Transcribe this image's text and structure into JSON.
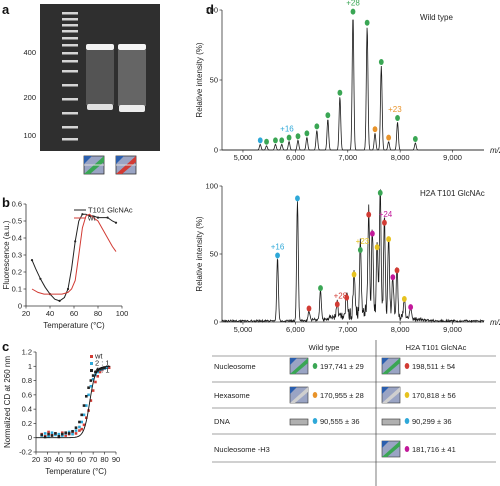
{
  "panel_labels": {
    "a": "a",
    "b": "b",
    "c": "c",
    "d": "d"
  },
  "colors": {
    "green": "#3aa654",
    "orange": "#e8932a",
    "blue": "#2ea8d8",
    "red": "#d23b34",
    "yellow": "#e6c21f",
    "magenta": "#c2189a",
    "black": "#222222"
  },
  "icons": {
    "nucleosome": "nucleosome-icon",
    "hexasome": "hexasome-icon",
    "dna": "dna-bar-icon"
  },
  "gel": {
    "ladder_labels": [
      "400",
      "200",
      "100"
    ]
  },
  "chart_data": [
    {
      "panel": "b",
      "type": "line",
      "xlabel": "Temperature (°C)",
      "ylabel": "Fluorescence (a.u.)",
      "xlim": [
        20,
        100
      ],
      "ylim": [
        0,
        0.6
      ],
      "xticks": [
        20,
        40,
        60,
        80,
        100
      ],
      "yticks": [
        0,
        0.1,
        0.2,
        0.3,
        0.4,
        0.5,
        0.6
      ],
      "legend": [
        "T101 GlcNAc",
        "wt"
      ],
      "series": [
        {
          "name": "T101 GlcNAc",
          "x": [
            25,
            28,
            32,
            36,
            40,
            44,
            48,
            52,
            55,
            58,
            61,
            64,
            67,
            70,
            73,
            76,
            80,
            84,
            88,
            92,
            95
          ],
          "y": [
            0.27,
            0.22,
            0.16,
            0.11,
            0.07,
            0.04,
            0.03,
            0.05,
            0.1,
            0.22,
            0.38,
            0.5,
            0.54,
            0.54,
            0.53,
            0.53,
            0.52,
            0.52,
            0.52,
            0.5,
            0.49
          ]
        },
        {
          "name": "wt",
          "x": [
            25,
            30,
            35,
            40,
            45,
            50,
            55,
            58,
            61,
            64,
            67,
            70,
            73,
            76,
            80,
            84,
            88,
            92,
            95
          ],
          "y": [
            0.1,
            0.08,
            0.07,
            0.07,
            0.07,
            0.07,
            0.08,
            0.1,
            0.15,
            0.3,
            0.46,
            0.53,
            0.54,
            0.52,
            0.5,
            0.45,
            0.4,
            0.35,
            0.32
          ]
        }
      ]
    },
    {
      "panel": "c",
      "type": "scatter",
      "xlabel": "Temperature (°C)",
      "ylabel": "Normalized CD at 260 nm",
      "xlim": [
        20,
        90
      ],
      "ylim": [
        -0.2,
        1.2
      ],
      "xticks": [
        20,
        30,
        40,
        50,
        60,
        70,
        80,
        90
      ],
      "yticks": [
        -0.2,
        0,
        0.2,
        0.4,
        0.6,
        0.8,
        1.0,
        1.2
      ],
      "legend": [
        "wt",
        "2 : 1",
        "4 : 1"
      ],
      "series": [
        {
          "name": "wt",
          "color_key": "red",
          "x": [
            25,
            28,
            31,
            34,
            37,
            40,
            43,
            46,
            49,
            52,
            55,
            58,
            60,
            62,
            64,
            66,
            68,
            70,
            72,
            74,
            76,
            78,
            80,
            82,
            84
          ],
          "y": [
            0.05,
            0.02,
            0.08,
            0.04,
            0.06,
            0.01,
            0.07,
            0.03,
            0.05,
            0.08,
            0.06,
            0.1,
            0.12,
            0.18,
            0.28,
            0.38,
            0.52,
            0.66,
            0.78,
            0.86,
            0.92,
            0.95,
            0.97,
            0.98,
            0.98
          ]
        },
        {
          "name": "2 : 1",
          "color_key": "blue",
          "x": [
            25,
            28,
            31,
            34,
            37,
            40,
            43,
            46,
            49,
            52,
            55,
            58,
            60,
            62,
            64,
            66,
            68,
            70,
            72,
            74,
            76,
            78,
            80,
            82
          ],
          "y": [
            0.03,
            0.06,
            0.02,
            0.07,
            0.04,
            0.05,
            0.03,
            0.06,
            0.08,
            0.05,
            0.1,
            0.15,
            0.22,
            0.32,
            0.45,
            0.6,
            0.72,
            0.82,
            0.88,
            0.92,
            0.95,
            0.96,
            0.97,
            0.98
          ]
        },
        {
          "name": "4 : 1",
          "color_key": "black",
          "x": [
            25,
            28,
            31,
            34,
            37,
            40,
            43,
            46,
            49,
            52,
            55,
            58,
            60,
            62,
            64,
            66,
            68,
            70,
            72,
            74,
            76,
            78,
            80
          ],
          "y": [
            0.04,
            0.01,
            0.05,
            0.03,
            0.06,
            0.02,
            0.05,
            0.07,
            0.06,
            0.09,
            0.14,
            0.22,
            0.32,
            0.45,
            0.58,
            0.7,
            0.8,
            0.87,
            0.92,
            0.95,
            0.96,
            0.97,
            0.98
          ]
        }
      ]
    },
    {
      "panel": "d-top",
      "type": "line",
      "title": "Wild type",
      "xlabel": "m/z",
      "ylabel": "Relative intensity (%)",
      "xlim": [
        4600,
        9600
      ],
      "ylim": [
        0,
        100
      ],
      "yticks": [
        0,
        50,
        100
      ],
      "xticks": [
        5000,
        6000,
        7000,
        8000,
        9000
      ],
      "xtick_labels": [
        "5,000",
        "6,000",
        "7,000",
        "8,000",
        "9,000"
      ],
      "peaks": [
        {
          "x": 5330,
          "y": 4,
          "color_key": "blue"
        },
        {
          "x": 5450,
          "y": 3,
          "color_key": "green"
        },
        {
          "x": 5620,
          "y": 4,
          "color_key": "green"
        },
        {
          "x": 5740,
          "y": 4,
          "color_key": "green"
        },
        {
          "x": 5880,
          "y": 6,
          "color_key": "green"
        },
        {
          "x": 6050,
          "y": 7,
          "color_key": "green"
        },
        {
          "x": 6220,
          "y": 9,
          "color_key": "green"
        },
        {
          "x": 6410,
          "y": 14,
          "color_key": "green"
        },
        {
          "x": 6620,
          "y": 22,
          "color_key": "green"
        },
        {
          "x": 6850,
          "y": 38,
          "color_key": "green"
        },
        {
          "x": 7100,
          "y": 96,
          "color_key": "green"
        },
        {
          "x": 7370,
          "y": 88,
          "color_key": "green"
        },
        {
          "x": 7520,
          "y": 12,
          "color_key": "orange"
        },
        {
          "x": 7640,
          "y": 60,
          "color_key": "green"
        },
        {
          "x": 7780,
          "y": 6,
          "color_key": "orange"
        },
        {
          "x": 7950,
          "y": 20,
          "color_key": "green"
        },
        {
          "x": 8290,
          "y": 5,
          "color_key": "green"
        }
      ],
      "annotations": [
        {
          "text": "+28",
          "x": 7100,
          "color_key": "green"
        },
        {
          "text": "+16",
          "x": 5840,
          "color_key": "blue"
        },
        {
          "text": "+23",
          "x": 7900,
          "color_key": "orange"
        }
      ]
    },
    {
      "panel": "d-bottom",
      "type": "line",
      "title": "H2A T101 GlcNAc",
      "xlabel": "m/z",
      "ylabel": "Relative intensity (%)",
      "xlim": [
        4600,
        9600
      ],
      "ylim": [
        0,
        100
      ],
      "yticks": [
        0,
        50,
        100
      ],
      "xticks": [
        5000,
        6000,
        7000,
        8000,
        9000
      ],
      "xtick_labels": [
        "5,000",
        "6,000",
        "7,000",
        "8,000",
        "9,000"
      ],
      "peaks": [
        {
          "x": 5660,
          "y": 46,
          "color_key": "blue"
        },
        {
          "x": 6040,
          "y": 88,
          "color_key": "blue"
        },
        {
          "x": 6260,
          "y": 7,
          "color_key": "red"
        },
        {
          "x": 6480,
          "y": 22,
          "color_key": "green"
        },
        {
          "x": 6800,
          "y": 10,
          "color_key": "red"
        },
        {
          "x": 6980,
          "y": 15,
          "color_key": "red"
        },
        {
          "x": 7120,
          "y": 32,
          "color_key": "yellow"
        },
        {
          "x": 7240,
          "y": 50,
          "color_key": "green"
        },
        {
          "x": 7400,
          "y": 76,
          "color_key": "red"
        },
        {
          "x": 7470,
          "y": 62,
          "color_key": "magenta"
        },
        {
          "x": 7560,
          "y": 52,
          "color_key": "yellow"
        },
        {
          "x": 7620,
          "y": 92,
          "color_key": "green"
        },
        {
          "x": 7700,
          "y": 70,
          "color_key": "red"
        },
        {
          "x": 7780,
          "y": 58,
          "color_key": "yellow"
        },
        {
          "x": 7860,
          "y": 30,
          "color_key": "magenta"
        },
        {
          "x": 7940,
          "y": 35,
          "color_key": "red"
        },
        {
          "x": 8080,
          "y": 14,
          "color_key": "yellow"
        },
        {
          "x": 8200,
          "y": 8,
          "color_key": "magenta"
        }
      ],
      "annotations": [
        {
          "text": "+16",
          "x": 5660,
          "color_key": "blue"
        },
        {
          "text": "+28",
          "x": 6860,
          "color_key": "red"
        },
        {
          "text": "+23",
          "x": 7280,
          "color_key": "yellow"
        },
        {
          "text": "+24",
          "x": 7720,
          "color_key": "magenta"
        }
      ]
    }
  ],
  "mass_table": {
    "headers": [
      "Wild type",
      "H2A T101 GlcNAc"
    ],
    "rows": [
      {
        "label": "Nucleosome",
        "wt_icon": "nucleosome",
        "wt_color": "green",
        "wt_value": "197,741 ± 29",
        "mut_icon": "nucleosome",
        "mut_color": "red",
        "mut_value": "198,511 ± 54"
      },
      {
        "label": "Hexasome",
        "wt_icon": "hexasome",
        "wt_color": "orange",
        "wt_value": "170,955 ± 28",
        "mut_icon": "hexasome",
        "mut_color": "yellow",
        "mut_value": "170,818 ± 56"
      },
      {
        "label": "DNA",
        "wt_icon": "dna",
        "wt_color": "blue",
        "wt_value": "90,555 ± 36",
        "mut_icon": "dna",
        "mut_color": "blue",
        "mut_value": "90,299 ± 36"
      },
      {
        "label": "Nucleosome -H3",
        "wt_icon": "",
        "wt_color": "",
        "wt_value": "",
        "mut_icon": "nucleosome",
        "mut_color": "magenta",
        "mut_value": "181,716 ± 41"
      }
    ]
  }
}
